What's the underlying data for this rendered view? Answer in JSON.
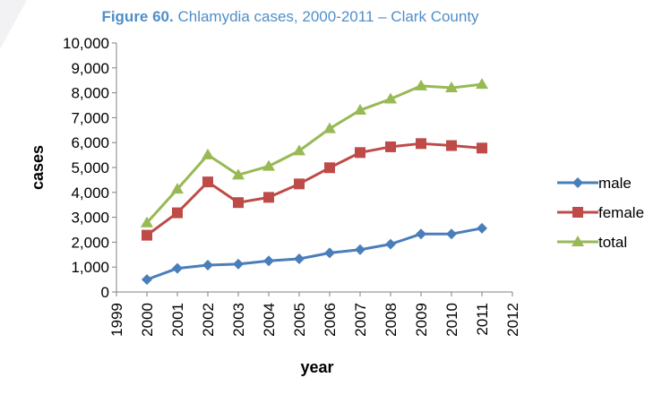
{
  "chart_data": {
    "type": "line",
    "title_prefix": "Figure 60.",
    "title_text": " Chlamydia cases, 2000-2011 – Clark County",
    "xlabel": "year",
    "ylabel": "cases",
    "xlim": [
      1999,
      2012
    ],
    "ylim": [
      0,
      10000
    ],
    "x_ticks": [
      "1999",
      "2000",
      "2001",
      "2002",
      "2003",
      "2004",
      "2005",
      "2006",
      "2007",
      "2008",
      "2009",
      "2010",
      "2011",
      "2012"
    ],
    "y_ticks": [
      "0",
      "1,000",
      "2,000",
      "3,000",
      "4,000",
      "5,000",
      "6,000",
      "7,000",
      "8,000",
      "9,000",
      "10,000"
    ],
    "grid": false,
    "legend_position": "right",
    "x": [
      2000,
      2001,
      2002,
      2003,
      2004,
      2005,
      2006,
      2007,
      2008,
      2009,
      2010,
      2011
    ],
    "series": [
      {
        "name": "male",
        "color": "#4A7EBB",
        "marker": "diamond",
        "values": [
          500,
          950,
          1080,
          1120,
          1250,
          1330,
          1570,
          1700,
          1920,
          2330,
          2330,
          2560
        ]
      },
      {
        "name": "female",
        "color": "#BE4B48",
        "marker": "square",
        "values": [
          2280,
          3180,
          4420,
          3590,
          3800,
          4340,
          4990,
          5600,
          5830,
          5960,
          5880,
          5780
        ]
      },
      {
        "name": "total",
        "color": "#98B954",
        "marker": "triangle",
        "values": [
          2780,
          4130,
          5510,
          4700,
          5050,
          5670,
          6560,
          7300,
          7750,
          8280,
          8200,
          8340
        ]
      }
    ]
  }
}
